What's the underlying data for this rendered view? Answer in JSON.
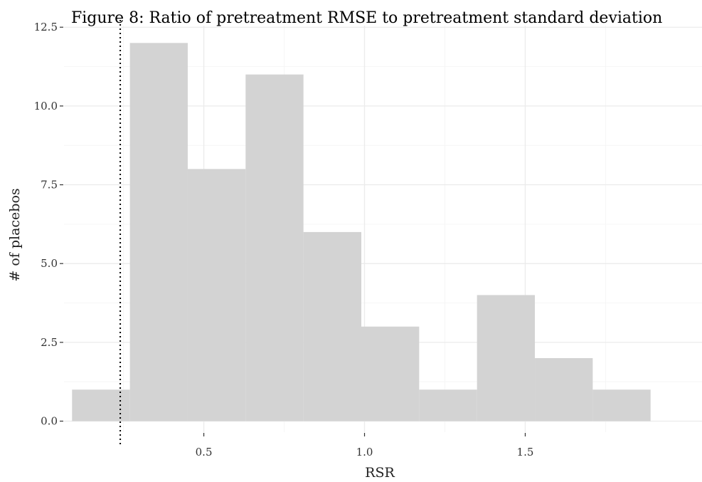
{
  "chart_data": {
    "type": "bar",
    "title": "Figure 8: Ratio of pretreatment RMSE to pretreatment standard deviation",
    "xlabel": "RSR",
    "ylabel": "# of placebos",
    "xlim": [
      0.065,
      2.05
    ],
    "ylim": [
      -0.35,
      12.55
    ],
    "x_ticks": [
      0.5,
      1.0,
      1.5
    ],
    "x_tick_labels": [
      "0.5",
      "1.0",
      "1.5"
    ],
    "y_ticks": [
      0,
      2.5,
      5,
      7.5,
      10,
      12.5
    ],
    "y_tick_labels": [
      "0.0",
      "2.5",
      "5.0",
      "7.5",
      "10.0",
      "12.5"
    ],
    "grid": true,
    "legend": "none",
    "bar_color": "#d3d3d3",
    "bins": [
      {
        "x0": 0.09,
        "x1": 0.27,
        "count": 1
      },
      {
        "x0": 0.27,
        "x1": 0.45,
        "count": 12
      },
      {
        "x0": 0.45,
        "x1": 0.63,
        "count": 8
      },
      {
        "x0": 0.63,
        "x1": 0.81,
        "count": 11
      },
      {
        "x0": 0.81,
        "x1": 0.99,
        "count": 6
      },
      {
        "x0": 0.99,
        "x1": 1.17,
        "count": 3
      },
      {
        "x0": 1.17,
        "x1": 1.35,
        "count": 1
      },
      {
        "x0": 1.35,
        "x1": 1.53,
        "count": 4
      },
      {
        "x0": 1.53,
        "x1": 1.71,
        "count": 2
      },
      {
        "x0": 1.71,
        "x1": 1.89,
        "count": 1
      }
    ],
    "reference_line": {
      "x": 0.24,
      "style": "dotted",
      "color": "#000000"
    }
  }
}
